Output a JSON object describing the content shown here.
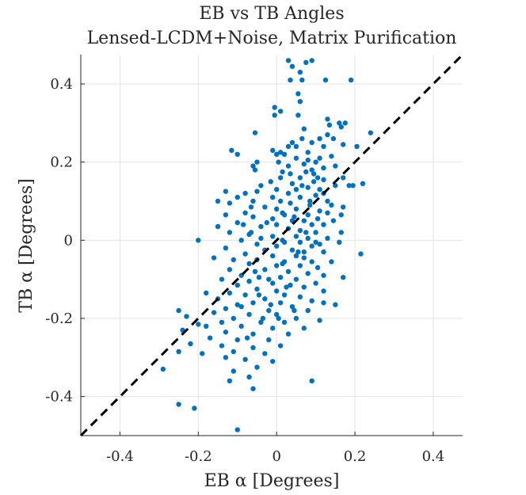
{
  "chart_data": {
    "type": "scatter",
    "title_lines": [
      "EB vs TB Angles",
      "Lensed-LCDM+Noise, Matrix Purification"
    ],
    "xlabel": "EB α [Degrees]",
    "ylabel": "TB α [Degrees]",
    "xlim": [
      -0.5,
      0.475
    ],
    "ylim": [
      -0.5,
      0.475
    ],
    "x_ticks": [
      -0.4,
      -0.2,
      0,
      0.2,
      0.4
    ],
    "x_tick_labels": [
      "-0.4",
      "-0.2",
      "0",
      "0.2",
      "0.4"
    ],
    "y_ticks": [
      -0.4,
      -0.2,
      0,
      0.2,
      0.4
    ],
    "y_tick_labels": [
      "-0.4",
      "-0.2",
      "0",
      "0.2",
      "0.4"
    ],
    "grid": true,
    "reference_line": {
      "style": "dashed",
      "color": "#000000",
      "from": [
        -0.5,
        -0.5
      ],
      "to": [
        0.475,
        0.475
      ]
    },
    "marker_color": "#0072bd",
    "points": [
      [
        0.03,
        0.46
      ],
      [
        0.075,
        0.455
      ],
      [
        0.09,
        0.46
      ],
      [
        0.04,
        0.445
      ],
      [
        0.06,
        0.43
      ],
      [
        0.035,
        0.41
      ],
      [
        0.065,
        0.41
      ],
      [
        0.125,
        0.41
      ],
      [
        0.19,
        0.41
      ],
      [
        0.055,
        0.375
      ],
      [
        0.06,
        0.355
      ],
      [
        -0.005,
        0.34
      ],
      [
        0.01,
        0.33
      ],
      [
        0.055,
        0.32
      ],
      [
        -0.005,
        0.32
      ],
      [
        0.13,
        0.31
      ],
      [
        0.16,
        0.3
      ],
      [
        0.175,
        0.3
      ],
      [
        0.135,
        0.295
      ],
      [
        0.165,
        0.29
      ],
      [
        0.07,
        0.285
      ],
      [
        0.24,
        0.275
      ],
      [
        -0.055,
        0.275
      ],
      [
        0.13,
        0.27
      ],
      [
        0.065,
        0.26
      ],
      [
        0.11,
        0.26
      ],
      [
        0.04,
        0.25
      ],
      [
        0.145,
        0.26
      ],
      [
        0.09,
        0.25
      ],
      [
        0.17,
        0.245
      ],
      [
        0.05,
        0.24
      ],
      [
        0.12,
        0.24
      ],
      [
        0.205,
        0.24
      ],
      [
        0.08,
        0.225
      ],
      [
        -0.115,
        0.23
      ],
      [
        0.01,
        0.225
      ],
      [
        -0.01,
        0.23
      ],
      [
        0.14,
        0.215
      ],
      [
        0.11,
        0.21
      ],
      [
        0.0,
        0.22
      ],
      [
        0.02,
        0.22
      ],
      [
        -0.1,
        0.22
      ],
      [
        0.05,
        0.21
      ],
      [
        -0.05,
        0.2
      ],
      [
        0.08,
        0.205
      ],
      [
        0.07,
        0.195
      ],
      [
        0.1,
        0.2
      ],
      [
        -0.06,
        0.19
      ],
      [
        0.03,
        0.19
      ],
      [
        0.15,
        0.19
      ],
      [
        0.09,
        0.18
      ],
      [
        -0.055,
        0.18
      ],
      [
        0.12,
        0.185
      ],
      [
        0.015,
        0.175
      ],
      [
        0.075,
        0.175
      ],
      [
        0.095,
        0.17
      ],
      [
        0.01,
        0.16
      ],
      [
        0.06,
        0.16
      ],
      [
        0.105,
        0.16
      ],
      [
        0.17,
        0.16
      ],
      [
        -0.015,
        0.15
      ],
      [
        0.04,
        0.145
      ],
      [
        0.095,
        0.15
      ],
      [
        0.22,
        0.145
      ],
      [
        0.15,
        0.14
      ],
      [
        -0.04,
        0.14
      ],
      [
        0.0,
        0.13
      ],
      [
        0.05,
        0.13
      ],
      [
        0.08,
        0.135
      ],
      [
        0.11,
        0.13
      ],
      [
        -0.13,
        0.125
      ],
      [
        -0.08,
        0.12
      ],
      [
        -0.05,
        0.125
      ],
      [
        0.03,
        0.12
      ],
      [
        0.12,
        0.12
      ],
      [
        0.185,
        0.14
      ],
      [
        0.195,
        0.14
      ],
      [
        -0.01,
        0.11
      ],
      [
        0.06,
        0.11
      ],
      [
        0.1,
        0.115
      ],
      [
        -0.1,
        0.11
      ],
      [
        0.13,
        0.1
      ],
      [
        -0.15,
        0.1
      ],
      [
        -0.12,
        0.095
      ],
      [
        -0.06,
        0.1
      ],
      [
        0.01,
        0.1
      ],
      [
        0.035,
        0.095
      ],
      [
        0.085,
        0.09
      ],
      [
        0.14,
        0.09
      ],
      [
        0.17,
        0.085
      ],
      [
        -0.03,
        0.085
      ],
      [
        0.0,
        0.08
      ],
      [
        0.05,
        0.08
      ],
      [
        0.11,
        0.075
      ],
      [
        -0.08,
        0.07
      ],
      [
        -0.13,
        0.065
      ],
      [
        0.02,
        0.065
      ],
      [
        0.08,
        0.065
      ],
      [
        0.13,
        0.07
      ],
      [
        0.165,
        0.065
      ],
      [
        -0.06,
        0.06
      ],
      [
        -0.01,
        0.055
      ],
      [
        0.04,
        0.05
      ],
      [
        0.07,
        0.05
      ],
      [
        0.105,
        0.055
      ],
      [
        0.145,
        0.05
      ],
      [
        -0.1,
        0.045
      ],
      [
        0.0,
        0.04
      ],
      [
        0.09,
        0.04
      ],
      [
        0.12,
        0.04
      ],
      [
        -0.15,
        0.035
      ],
      [
        -0.04,
        0.035
      ],
      [
        0.03,
        0.03
      ],
      [
        0.06,
        0.025
      ],
      [
        0.1,
        0.02
      ],
      [
        0.165,
        0.02
      ],
      [
        -0.12,
        0.02
      ],
      [
        -0.07,
        0.015
      ],
      [
        -0.01,
        0.01
      ],
      [
        0.05,
        0.01
      ],
      [
        0.08,
        0.005
      ],
      [
        0.13,
        0.005
      ],
      [
        -0.2,
        0.0
      ],
      [
        -0.09,
        0.0
      ],
      [
        0.02,
        -0.005
      ],
      [
        0.06,
        -0.005
      ],
      [
        0.11,
        -0.01
      ],
      [
        0.16,
        -0.005
      ],
      [
        -0.05,
        -0.01
      ],
      [
        0.0,
        -0.015
      ],
      [
        0.09,
        -0.015
      ],
      [
        -0.13,
        -0.02
      ],
      [
        -0.03,
        -0.025
      ],
      [
        0.04,
        -0.025
      ],
      [
        0.07,
        -0.03
      ],
      [
        0.12,
        -0.03
      ],
      [
        0.215,
        -0.035
      ],
      [
        -0.08,
        -0.035
      ],
      [
        -0.01,
        -0.04
      ],
      [
        0.05,
        -0.04
      ],
      [
        -0.16,
        -0.045
      ],
      [
        -0.11,
        -0.05
      ],
      [
        -0.05,
        -0.05
      ],
      [
        0.02,
        -0.055
      ],
      [
        0.09,
        -0.055
      ],
      [
        0.14,
        -0.055
      ],
      [
        -0.07,
        -0.06
      ],
      [
        0.0,
        -0.065
      ],
      [
        0.06,
        -0.065
      ],
      [
        0.105,
        -0.07
      ],
      [
        -0.12,
        -0.075
      ],
      [
        -0.03,
        -0.075
      ],
      [
        0.03,
        -0.08
      ],
      [
        0.08,
        -0.085
      ],
      [
        0.12,
        -0.09
      ],
      [
        -0.09,
        -0.09
      ],
      [
        -0.045,
        -0.095
      ],
      [
        0.01,
        -0.095
      ],
      [
        0.05,
        -0.1
      ],
      [
        0.17,
        -0.095
      ],
      [
        -0.14,
        -0.1
      ],
      [
        -0.07,
        -0.105
      ],
      [
        -0.01,
        -0.11
      ],
      [
        0.1,
        -0.11
      ],
      [
        -0.1,
        -0.115
      ],
      [
        0.035,
        -0.115
      ],
      [
        0.07,
        -0.12
      ],
      [
        -0.05,
        -0.125
      ],
      [
        0.0,
        -0.13
      ],
      [
        0.12,
        -0.13
      ],
      [
        -0.18,
        -0.135
      ],
      [
        -0.12,
        -0.135
      ],
      [
        -0.08,
        -0.14
      ],
      [
        0.02,
        -0.14
      ],
      [
        0.06,
        -0.145
      ],
      [
        -0.03,
        -0.15
      ],
      [
        0.09,
        -0.155
      ],
      [
        -0.15,
        -0.15
      ],
      [
        -0.06,
        -0.16
      ],
      [
        0.01,
        -0.16
      ],
      [
        0.12,
        -0.16
      ],
      [
        0.15,
        -0.165
      ],
      [
        -0.1,
        -0.165
      ],
      [
        0.04,
        -0.17
      ],
      [
        -0.13,
        -0.175
      ],
      [
        -0.02,
        -0.18
      ],
      [
        0.08,
        -0.18
      ],
      [
        -0.25,
        -0.18
      ],
      [
        -0.16,
        -0.185
      ],
      [
        -0.07,
        -0.19
      ],
      [
        0.0,
        -0.19
      ],
      [
        -0.23,
        -0.195
      ],
      [
        -0.11,
        -0.2
      ],
      [
        0.05,
        -0.2
      ],
      [
        0.11,
        -0.205
      ],
      [
        -0.04,
        -0.21
      ],
      [
        -0.14,
        -0.21
      ],
      [
        0.02,
        -0.21
      ],
      [
        -0.2,
        -0.215
      ],
      [
        -0.09,
        -0.22
      ],
      [
        -0.18,
        -0.22
      ],
      [
        -0.01,
        -0.225
      ],
      [
        0.07,
        -0.225
      ],
      [
        -0.24,
        -0.23
      ],
      [
        -0.13,
        -0.235
      ],
      [
        -0.06,
        -0.24
      ],
      [
        0.03,
        -0.24
      ],
      [
        -0.17,
        -0.25
      ],
      [
        -0.1,
        -0.255
      ],
      [
        -0.02,
        -0.255
      ],
      [
        -0.22,
        -0.265
      ],
      [
        -0.14,
        -0.27
      ],
      [
        -0.06,
        -0.275
      ],
      [
        0.01,
        -0.27
      ],
      [
        -0.11,
        -0.285
      ],
      [
        -0.03,
        -0.29
      ],
      [
        -0.19,
        -0.29
      ],
      [
        -0.25,
        -0.285
      ],
      [
        -0.08,
        -0.305
      ],
      [
        -0.01,
        -0.31
      ],
      [
        -0.13,
        -0.3
      ],
      [
        -0.05,
        -0.325
      ],
      [
        -0.11,
        -0.335
      ],
      [
        -0.29,
        -0.33
      ],
      [
        -0.07,
        -0.35
      ],
      [
        -0.12,
        -0.36
      ],
      [
        -0.06,
        -0.38
      ],
      [
        0.09,
        -0.36
      ],
      [
        -0.25,
        -0.42
      ],
      [
        -0.21,
        -0.43
      ],
      [
        -0.1,
        -0.485
      ],
      [
        -0.02,
        -0.1
      ],
      [
        -0.04,
        0.005
      ],
      [
        0.015,
        0.0
      ],
      [
        0.07,
        -0.045
      ],
      [
        -0.025,
        0.045
      ],
      [
        0.045,
        0.06
      ],
      [
        -0.085,
        0.04
      ],
      [
        0.025,
        -0.12
      ],
      [
        -0.015,
        -0.165
      ],
      [
        0.055,
        -0.03
      ],
      [
        0.085,
        0.1
      ],
      [
        -0.065,
        0.085
      ],
      [
        0.005,
        0.2
      ],
      [
        0.065,
        0.14
      ],
      [
        -0.035,
        -0.2
      ],
      [
        0.045,
        -0.18
      ],
      [
        -0.075,
        -0.25
      ],
      [
        0.015,
        -0.06
      ],
      [
        -0.045,
        -0.14
      ],
      [
        0.1,
        -0.005
      ],
      [
        0.035,
        0.17
      ],
      [
        -0.09,
        -0.17
      ],
      [
        0.015,
        0.07
      ],
      [
        0.075,
        0.02
      ],
      [
        0.12,
        0.155
      ],
      [
        -0.055,
        -0.08
      ],
      [
        0.005,
        -0.2
      ],
      [
        -0.065,
        0.02
      ],
      [
        0.03,
        0.24
      ]
    ]
  }
}
